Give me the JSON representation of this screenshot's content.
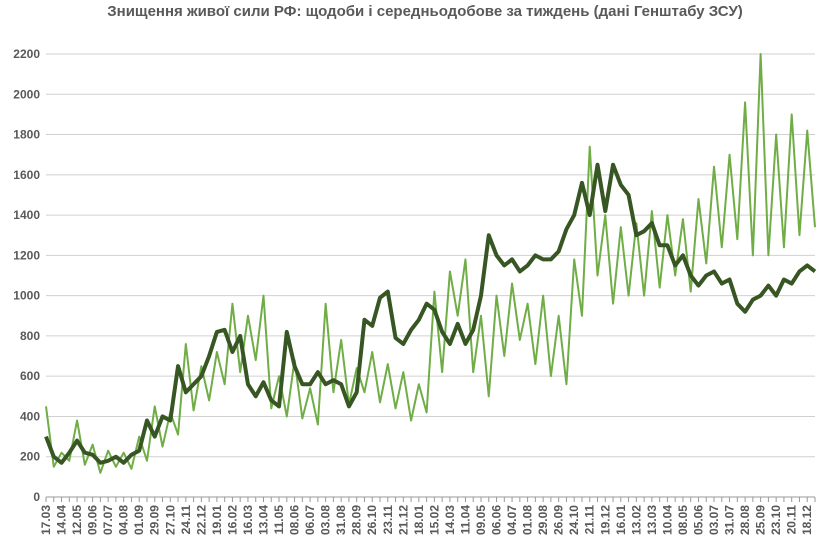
{
  "chart_data": {
    "type": "line",
    "title": "Знищення живої сили РФ: щодоби і середньодобове за тиждень (дані Генштабу ЗСУ)",
    "categories": [
      "17.03",
      null,
      "14.04",
      null,
      "12.05",
      null,
      "09.06",
      null,
      "07.07",
      null,
      "04.08",
      null,
      "01.09",
      null,
      "29.09",
      null,
      "27.10",
      null,
      "24.11",
      null,
      "22.12",
      null,
      "19.01",
      null,
      "16.02",
      null,
      "16.03",
      null,
      "13.04",
      null,
      "11.05",
      null,
      "08.06",
      null,
      "06.07",
      null,
      "03.08",
      null,
      "31.08",
      null,
      "28.09",
      null,
      "26.10",
      null,
      "23.11",
      null,
      "21.12",
      null,
      "18.01",
      null,
      "15.02",
      null,
      "14.03",
      null,
      "11.04",
      null,
      "09.05",
      null,
      "06.06",
      null,
      "04.07",
      null,
      "01.08",
      null,
      "29.08",
      null,
      "26.09",
      null,
      "24.10",
      null,
      "21.11",
      null,
      "19.12",
      null,
      "16.01",
      null,
      "13.02",
      null,
      "13.03",
      null,
      "10.04",
      null,
      "08.05",
      null,
      "05.06",
      null,
      "03.07",
      null,
      "31.07",
      null,
      "28.08",
      null,
      "25.09",
      null,
      "23.10",
      null,
      "20.11",
      null,
      "18.12",
      null
    ],
    "series": [
      {
        "color": "#70ad47",
        "values": [
          450,
          150,
          220,
          180,
          380,
          160,
          260,
          120,
          230,
          150,
          220,
          140,
          300,
          180,
          450,
          250,
          420,
          310,
          760,
          430,
          650,
          480,
          720,
          560,
          960,
          620,
          900,
          680,
          1000,
          440,
          600,
          400,
          680,
          390,
          540,
          360,
          960,
          520,
          780,
          460,
          640,
          520,
          720,
          470,
          660,
          440,
          620,
          380,
          560,
          420,
          1020,
          620,
          1120,
          900,
          1180,
          620,
          900,
          500,
          1000,
          700,
          1060,
          780,
          960,
          660,
          1000,
          600,
          900,
          560,
          1180,
          900,
          1740,
          1100,
          1400,
          960,
          1340,
          1000,
          1360,
          1000,
          1420,
          1040,
          1400,
          1100,
          1380,
          1020,
          1480,
          1160,
          1640,
          1240,
          1700,
          1280,
          1960,
          1200,
          2200,
          1200,
          1800,
          1240,
          1900,
          1300,
          1820,
          1340
        ]
      },
      {
        "color": "#375623",
        "values": [
          300,
          200,
          170,
          220,
          280,
          220,
          210,
          170,
          180,
          200,
          170,
          210,
          230,
          380,
          300,
          400,
          380,
          650,
          520,
          560,
          600,
          700,
          820,
          830,
          720,
          800,
          560,
          500,
          570,
          480,
          450,
          820,
          650,
          560,
          560,
          620,
          560,
          580,
          560,
          450,
          520,
          880,
          850,
          990,
          1020,
          790,
          760,
          830,
          880,
          960,
          930,
          820,
          760,
          860,
          760,
          830,
          1000,
          1300,
          1200,
          1150,
          1180,
          1120,
          1150,
          1200,
          1180,
          1180,
          1220,
          1330,
          1400,
          1560,
          1400,
          1650,
          1420,
          1650,
          1550,
          1500,
          1300,
          1320,
          1360,
          1250,
          1250,
          1150,
          1200,
          1100,
          1050,
          1100,
          1120,
          1060,
          1080,
          960,
          920,
          980,
          1000,
          1050,
          1000,
          1080,
          1060,
          1120,
          1150,
          1120
        ]
      }
    ],
    "ylim": [
      0,
      2200
    ],
    "yticks": [
      0,
      200,
      400,
      600,
      800,
      1000,
      1200,
      1400,
      1600,
      1800,
      2000,
      2200
    ],
    "grid": true
  }
}
